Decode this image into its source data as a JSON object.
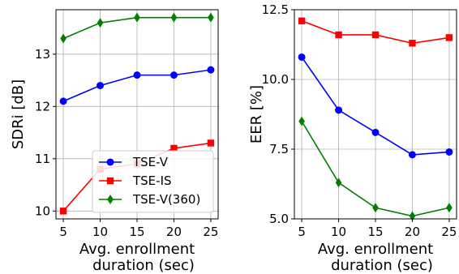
{
  "chart_data": [
    {
      "type": "line",
      "xlabel_lines": [
        "Avg. enrollment",
        "duration (sec)"
      ],
      "ylabel": "SDRi [dB]",
      "x": [
        5,
        10,
        15,
        20,
        25
      ],
      "xticks": [
        "5",
        "10",
        "15",
        "20",
        "25"
      ],
      "xlim": [
        4,
        26
      ],
      "ylim": [
        9.85,
        13.85
      ],
      "yticks": [
        "10",
        "11",
        "12",
        "13"
      ],
      "ytick_values": [
        10,
        11,
        12,
        13
      ],
      "grid": true,
      "legend": "bottom-right",
      "series": [
        {
          "name": "TSE-V",
          "color": "#0000ff",
          "marker": "circle",
          "values": [
            12.1,
            12.4,
            12.6,
            12.6,
            12.7
          ]
        },
        {
          "name": "TSE-IS",
          "color": "#ff0000",
          "marker": "square",
          "values": [
            10.0,
            10.8,
            10.9,
            11.2,
            11.3
          ]
        },
        {
          "name": "TSE-V(360)",
          "color": "#008000",
          "marker": "diamond",
          "values": [
            13.3,
            13.6,
            13.7,
            13.7,
            13.7
          ]
        }
      ]
    },
    {
      "type": "line",
      "xlabel_lines": [
        "Avg. enrollment",
        "duration (sec)"
      ],
      "ylabel": "EER [%]",
      "x": [
        5,
        10,
        15,
        20,
        25
      ],
      "xticks": [
        "5",
        "10",
        "15",
        "20",
        "25"
      ],
      "xlim": [
        4,
        26
      ],
      "ylim": [
        5.0,
        12.5
      ],
      "yticks": [
        "5.0",
        "7.5",
        "10.0",
        "12.5"
      ],
      "ytick_values": [
        5.0,
        7.5,
        10.0,
        12.5
      ],
      "grid": true,
      "series": [
        {
          "color": "#ff0000",
          "marker": "square",
          "values": [
            12.1,
            11.6,
            11.6,
            11.3,
            11.5
          ]
        },
        {
          "color": "#0000ff",
          "marker": "circle",
          "values": [
            10.8,
            8.9,
            8.1,
            7.3,
            7.4
          ]
        },
        {
          "color": "#008000",
          "marker": "diamond",
          "values": [
            8.5,
            6.3,
            5.4,
            5.1,
            5.4
          ]
        }
      ]
    }
  ]
}
